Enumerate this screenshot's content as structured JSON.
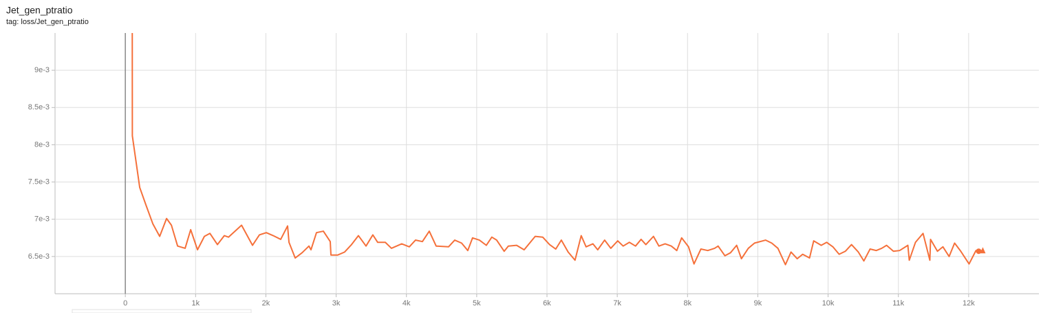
{
  "chart_data": {
    "type": "line",
    "title": "Jet_gen_ptratio",
    "subtitle": "tag: loss/Jet_gen_ptratio",
    "color": "#f5703a",
    "grid": true,
    "xlim": [
      -1000,
      13000
    ],
    "ylim": [
      0.006,
      0.0095
    ],
    "xticks": [
      0,
      {
        "value": 1000,
        "label": "1k"
      },
      {
        "value": 2000,
        "label": "2k"
      },
      {
        "value": 3000,
        "label": "3k"
      },
      {
        "value": 4000,
        "label": "4k"
      },
      {
        "value": 5000,
        "label": "5k"
      },
      {
        "value": 6000,
        "label": "6k"
      },
      {
        "value": 7000,
        "label": "7k"
      },
      {
        "value": 8000,
        "label": "8k"
      },
      {
        "value": 9000,
        "label": "9k"
      },
      {
        "value": 10000,
        "label": "10k"
      },
      {
        "value": 11000,
        "label": "11k"
      },
      {
        "value": 12000,
        "label": "12k"
      }
    ],
    "yticks": [
      {
        "value": 0.0065,
        "label": "6.5e-3"
      },
      {
        "value": 0.007,
        "label": "7e-3"
      },
      {
        "value": 0.0075,
        "label": "7.5e-3"
      },
      {
        "value": 0.008,
        "label": "8e-3"
      },
      {
        "value": 0.0085,
        "label": "8.5e-3"
      },
      {
        "value": 0.009,
        "label": "9e-3"
      }
    ],
    "x": [
      98,
      100,
      205,
      294,
      391,
      489,
      587,
      656,
      744,
      851,
      930,
      1027,
      1125,
      1204,
      1311,
      1409,
      1468,
      1654,
      1810,
      1908,
      2006,
      2104,
      2211,
      2309,
      2329,
      2417,
      2515,
      2613,
      2642,
      2720,
      2818,
      2916,
      2926,
      3023,
      3121,
      3219,
      3317,
      3425,
      3522,
      3591,
      3699,
      3787,
      3933,
      4041,
      4129,
      4227,
      4325,
      4423,
      4599,
      4687,
      4785,
      4873,
      4941,
      5039,
      5137,
      5215,
      5284,
      5391,
      5450,
      5568,
      5675,
      5832,
      5939,
      6037,
      6125,
      6204,
      6301,
      6399,
      6487,
      6556,
      6654,
      6722,
      6820,
      6908,
      7006,
      7084,
      7172,
      7260,
      7339,
      7407,
      7515,
      7593,
      7681,
      7769,
      7847,
      7916,
      8014,
      8092,
      8190,
      8288,
      8386,
      8435,
      8532,
      8611,
      8699,
      8767,
      8865,
      8953,
      9110,
      9198,
      9286,
      9393,
      9472,
      9560,
      9638,
      9736,
      9795,
      9902,
      9980,
      10068,
      10157,
      10245,
      10333,
      10430,
      10509,
      10597,
      10685,
      10763,
      10832,
      10930,
      11018,
      11135,
      11155,
      11243,
      11351,
      11448,
      11458,
      11556,
      11634,
      11722,
      11800,
      11888,
      12006,
      12104,
      12182
    ],
    "values": [
      0.0105,
      0.00812,
      0.007426,
      0.00719,
      0.00694,
      0.00677,
      0.00701,
      0.00692,
      0.00664,
      0.00661,
      0.00686,
      0.00659,
      0.00677,
      0.00681,
      0.00666,
      0.00678,
      0.00676,
      0.00692,
      0.00665,
      0.00679,
      0.00682,
      0.00678,
      0.00673,
      0.00691,
      0.00669,
      0.00648,
      0.00655,
      0.00664,
      0.00659,
      0.00682,
      0.00684,
      0.0067,
      0.00652,
      0.00652,
      0.00656,
      0.00666,
      0.00678,
      0.00664,
      0.00679,
      0.00669,
      0.00669,
      0.00661,
      0.00667,
      0.00663,
      0.00672,
      0.0067,
      0.00684,
      0.00664,
      0.00663,
      0.00672,
      0.00668,
      0.00658,
      0.00675,
      0.00672,
      0.00665,
      0.00676,
      0.00672,
      0.00657,
      0.00664,
      0.00665,
      0.00659,
      0.00677,
      0.00676,
      0.00666,
      0.0066,
      0.00672,
      0.00656,
      0.00645,
      0.00678,
      0.00663,
      0.00667,
      0.00659,
      0.00672,
      0.00661,
      0.00671,
      0.00664,
      0.00669,
      0.00664,
      0.00673,
      0.00666,
      0.00677,
      0.00664,
      0.00667,
      0.00664,
      0.00658,
      0.00675,
      0.00663,
      0.0064,
      0.0066,
      0.00658,
      0.00661,
      0.00664,
      0.00651,
      0.00655,
      0.00665,
      0.00647,
      0.00661,
      0.00668,
      0.00672,
      0.00668,
      0.00661,
      0.00639,
      0.00656,
      0.00647,
      0.00653,
      0.00648,
      0.00671,
      0.00665,
      0.00669,
      0.00663,
      0.00653,
      0.00657,
      0.00666,
      0.00656,
      0.00644,
      0.0066,
      0.00658,
      0.00661,
      0.00665,
      0.00657,
      0.00658,
      0.00665,
      0.00645,
      0.00669,
      0.00681,
      0.00645,
      0.00673,
      0.00657,
      0.00663,
      0.0065,
      0.00668,
      0.00657,
      0.0064,
      0.00658,
      0.00658
    ]
  }
}
